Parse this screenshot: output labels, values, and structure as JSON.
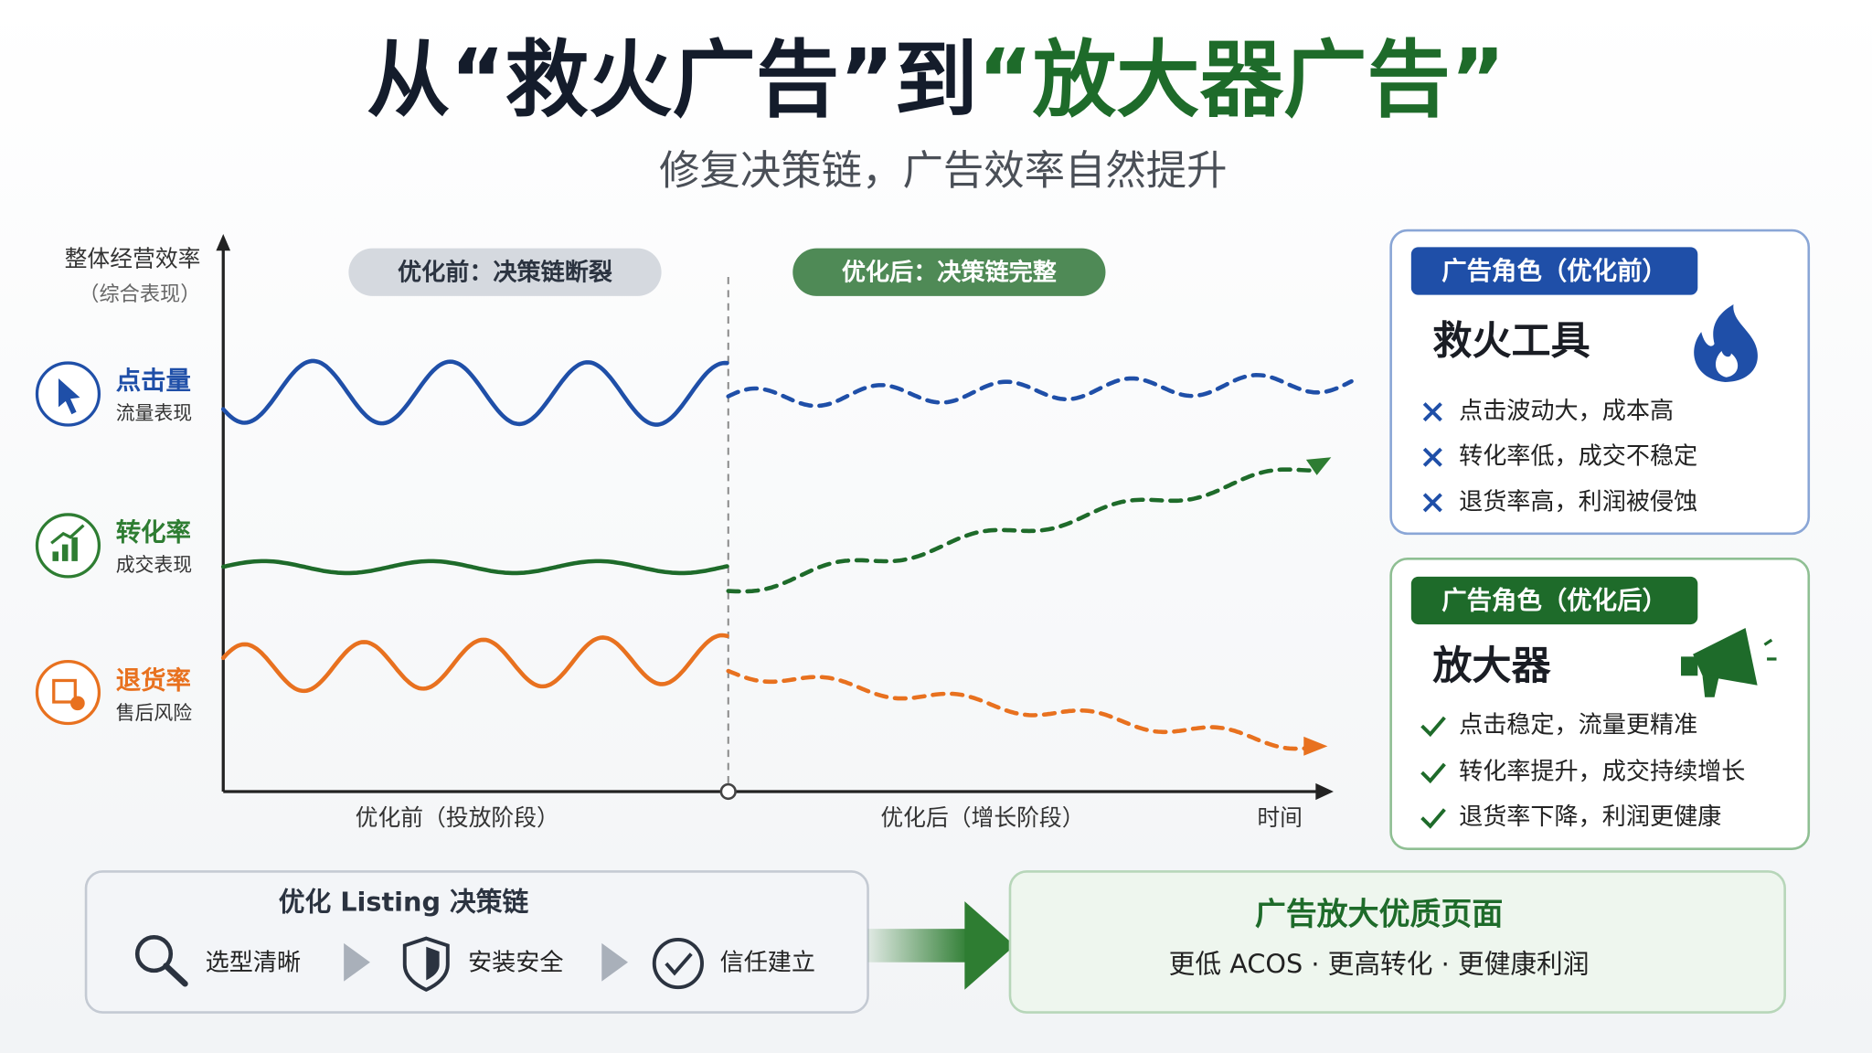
{
  "title": {
    "lead": "从“救火广告”到",
    "highlight": "“放大器广告”"
  },
  "subtitle": "修复决策链，广告效率自然提升",
  "chart": {
    "y_axis_label": "整体经营效率",
    "y_axis_note": "（综合表现）",
    "metrics": [
      {
        "name": "点击量",
        "note": "流量表现"
      },
      {
        "name": "转化率",
        "note": "成交表现"
      },
      {
        "name": "退货率",
        "note": "售后风险"
      }
    ],
    "phases": [
      "优化前：决策链断裂",
      "优化后：决策链完整"
    ],
    "x_labels": [
      "优化前（投放阶段）",
      "优化后（增长阶段）"
    ],
    "x_axis_label": "时间"
  },
  "panels": [
    {
      "tag": "广告角色（优化前）",
      "title": "救火工具",
      "items": [
        "点击波动大，成本高",
        "转化率低，成交不稳定",
        "退货率高，利润被侵蚀"
      ]
    },
    {
      "tag": "广告角色（优化后）",
      "title": "放大器",
      "items": [
        "点击稳定，流量更精准",
        "转化率提升，成交持续增长",
        "退货率下降，利润更健康"
      ]
    }
  ],
  "bottom": {
    "left": {
      "title": "优化 Listing 决策链",
      "steps": [
        "选型清晰",
        "安装安全",
        "信任建立"
      ]
    },
    "right": {
      "title": "广告放大优质页面",
      "subtitle": "更低 ACOS · 更高转化 · 更健康利润"
    }
  }
}
